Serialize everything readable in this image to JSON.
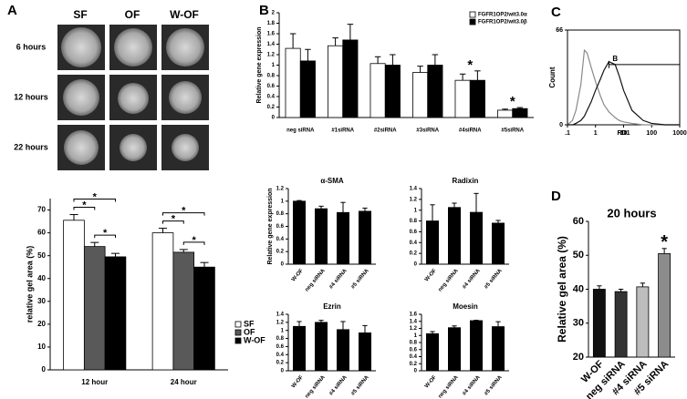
{
  "panel_labels": [
    "A",
    "B",
    "C",
    "D"
  ],
  "images": {
    "columns": [
      "SF",
      "OF",
      "W-OF"
    ],
    "rows": [
      "6 hours",
      "12 hours",
      "22 hours"
    ]
  },
  "chart_data": [
    {
      "type": "bar",
      "ylabel": "relative gel area (%)",
      "categories": [
        "12 hour",
        "24 hour"
      ],
      "series": [
        {
          "name": "SF",
          "color": "#ffffff",
          "values": [
            65.5,
            60
          ],
          "errors": [
            2.5,
            2
          ]
        },
        {
          "name": "OF",
          "color": "#595959",
          "values": [
            54,
            51.5
          ],
          "errors": [
            1.8,
            1.2
          ]
        },
        {
          "name": "W-OF",
          "color": "#000000",
          "values": [
            49.5,
            45
          ],
          "errors": [
            1.5,
            2
          ]
        }
      ],
      "ylim": [
        0,
        75
      ],
      "yticks": [
        0,
        10,
        20,
        30,
        40,
        50,
        60,
        70
      ],
      "legend": "right",
      "comparisons": [
        {
          "text": "*",
          "category": "12 hour",
          "pair": [
            "SF",
            "OF"
          ]
        },
        {
          "text": "*",
          "category": "12 hour",
          "pair": [
            "SF",
            "W-OF"
          ]
        },
        {
          "text": "*",
          "category": "12 hour",
          "pair": [
            "OF",
            "W-OF"
          ]
        },
        {
          "text": "*",
          "category": "24 hour",
          "pair": [
            "SF",
            "OF"
          ]
        },
        {
          "text": "*",
          "category": "24 hour",
          "pair": [
            "SF",
            "W-OF"
          ]
        },
        {
          "text": "*",
          "category": "24 hour",
          "pair": [
            "OF",
            "W-OF"
          ]
        }
      ]
    },
    {
      "type": "bar",
      "ylabel": "Relative gene expression",
      "categories": [
        "neg siRNA",
        "#1siRNA",
        "#2siRNA",
        "#3siRNA",
        "#4siRNA",
        "#5siRNA"
      ],
      "series": [
        {
          "name": "FGFR1OP2/wit3.0α",
          "color": "#ffffff",
          "values": [
            1.32,
            1.37,
            1.03,
            0.86,
            0.71,
            0.14
          ],
          "errors": [
            0.28,
            0.15,
            0.13,
            0.12,
            0.12,
            0.02
          ]
        },
        {
          "name": "FGFR1OP2/wit3.0β",
          "color": "#000000",
          "values": [
            1.08,
            1.48,
            1.0,
            1.0,
            0.71,
            0.17
          ],
          "errors": [
            0.22,
            0.3,
            0.2,
            0.2,
            0.18,
            0.02
          ]
        }
      ],
      "markers": [
        null,
        null,
        null,
        null,
        "*",
        "*"
      ],
      "ylim": [
        0,
        2
      ],
      "yticks": [
        0,
        0.2,
        0.4,
        0.6,
        0.8,
        1,
        1.2,
        1.4,
        1.6,
        1.8,
        2
      ],
      "legend": "top-right"
    },
    {
      "type": "bar",
      "title": "α-SMA",
      "ylabel": "Relative gene expression",
      "categories": [
        "W-OF",
        "neg siRNA",
        "#4 siRNA",
        "#5 siRNA"
      ],
      "color": "#000000",
      "values": [
        1.0,
        0.88,
        0.82,
        0.84
      ],
      "errors": [
        0.01,
        0.04,
        0.16,
        0.05
      ],
      "ylim": [
        0,
        1.2
      ],
      "yticks": [
        0,
        0.2,
        0.4,
        0.6,
        0.8,
        1,
        1.2
      ]
    },
    {
      "type": "bar",
      "title": "Radixin",
      "categories": [
        "W-OF",
        "neg siRNA",
        "#4 siRNA",
        "#5 siRNA"
      ],
      "color": "#000000",
      "values": [
        0.8,
        1.05,
        0.96,
        0.76
      ],
      "errors": [
        0.3,
        0.08,
        0.35,
        0.05
      ],
      "ylim": [
        0,
        1.4
      ],
      "yticks": [
        0,
        0.2,
        0.4,
        0.6,
        0.8,
        1,
        1.2,
        1.4
      ]
    },
    {
      "type": "bar",
      "title": "Ezrin",
      "categories": [
        "W-OF",
        "neg siRNA",
        "#4 siRNA",
        "#5 siRNA"
      ],
      "color": "#000000",
      "values": [
        1.1,
        1.2,
        1.02,
        0.94
      ],
      "errors": [
        0.12,
        0.05,
        0.2,
        0.18
      ],
      "ylim": [
        0,
        1.4
      ],
      "yticks": [
        0,
        0.2,
        0.4,
        0.6,
        0.8,
        1,
        1.2,
        1.4
      ]
    },
    {
      "type": "bar",
      "title": "Moesin",
      "categories": [
        "W-OF",
        "neg siRNA",
        "#4 siRNA",
        "#5 siRNA"
      ],
      "color": "#000000",
      "values": [
        1.05,
        1.22,
        1.42,
        1.25
      ],
      "errors": [
        0.06,
        0.05,
        0.01,
        0.14
      ],
      "ylim": [
        0,
        1.6
      ],
      "yticks": [
        0,
        0.2,
        0.4,
        0.6,
        0.8,
        1,
        1.2,
        1.4,
        1.6
      ]
    },
    {
      "type": "line",
      "xlabel": "RD1",
      "ylabel": "Count",
      "xscale": "log",
      "x": [
        0.1,
        0.15,
        0.2,
        0.3,
        0.4,
        0.5,
        0.7,
        1,
        1.5,
        2,
        3,
        5,
        7,
        10,
        20,
        50,
        100,
        300,
        1000
      ],
      "series": [
        {
          "color": "#8a8a8a",
          "values": [
            0,
            3,
            10,
            28,
            52,
            50,
            40,
            30,
            20,
            14,
            9,
            5,
            3,
            2,
            1,
            0,
            0,
            0,
            0
          ]
        },
        {
          "color": "#111111",
          "values": [
            0,
            0,
            1,
            3,
            6,
            10,
            16,
            24,
            32,
            38,
            44,
            42,
            34,
            24,
            10,
            3,
            1,
            0,
            0
          ]
        }
      ],
      "gate": {
        "label": "B",
        "x": [
          3,
          1000
        ],
        "y": 42
      },
      "xlim": [
        0.1,
        1000
      ],
      "xticks": [
        {
          "value": 0.1,
          "label": ".1"
        },
        1,
        10,
        100,
        1000
      ],
      "ylim": [
        0,
        66
      ],
      "yticks": [
        0,
        66
      ]
    },
    {
      "type": "bar",
      "title": "20 hours",
      "ylabel": "Relative gel area (%)",
      "categories": [
        "W-OF",
        "neg siRNA",
        "#4 siRNA",
        "#5 siRNA"
      ],
      "values": [
        40,
        39.3,
        40.7,
        50.5
      ],
      "errors": [
        1,
        0.7,
        1.1,
        1.5
      ],
      "colors": [
        "#111111",
        "#333333",
        "#bdbdbd",
        "#8c8c8c"
      ],
      "markers": [
        null,
        null,
        null,
        "*"
      ],
      "ylim": [
        20,
        60
      ],
      "yticks": [
        20,
        30,
        40,
        50,
        60
      ]
    }
  ]
}
